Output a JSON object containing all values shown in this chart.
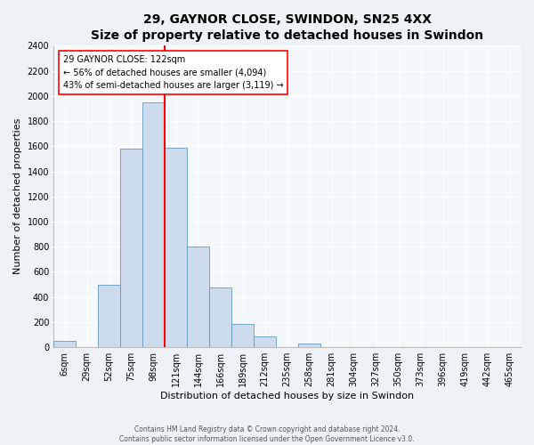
{
  "title": "29, GAYNOR CLOSE, SWINDON, SN25 4XX",
  "subtitle": "Size of property relative to detached houses in Swindon",
  "xlabel": "Distribution of detached houses by size in Swindon",
  "ylabel": "Number of detached properties",
  "bar_labels": [
    "6sqm",
    "29sqm",
    "52sqm",
    "75sqm",
    "98sqm",
    "121sqm",
    "144sqm",
    "166sqm",
    "189sqm",
    "212sqm",
    "235sqm",
    "258sqm",
    "281sqm",
    "304sqm",
    "327sqm",
    "350sqm",
    "373sqm",
    "396sqm",
    "419sqm",
    "442sqm",
    "465sqm"
  ],
  "bar_values": [
    50,
    0,
    500,
    1580,
    1950,
    1590,
    800,
    475,
    185,
    90,
    0,
    30,
    0,
    0,
    0,
    0,
    0,
    0,
    0,
    0,
    0
  ],
  "bar_color": "#ccdcee",
  "bar_edge_color": "#6699bb",
  "vline_color": "red",
  "vline_pos": 4.5,
  "annotation_text": "29 GAYNOR CLOSE: 122sqm\n← 56% of detached houses are smaller (4,094)\n43% of semi-detached houses are larger (3,119) →",
  "annotation_box_color": "white",
  "annotation_box_edge": "red",
  "ylim": [
    0,
    2400
  ],
  "yticks": [
    0,
    200,
    400,
    600,
    800,
    1000,
    1200,
    1400,
    1600,
    1800,
    2000,
    2200,
    2400
  ],
  "footer_line1": "Contains HM Land Registry data © Crown copyright and database right 2024.",
  "footer_line2": "Contains public sector information licensed under the Open Government Licence v3.0.",
  "bg_color": "#eef2f6",
  "plot_bg_color": "#f5f8fb",
  "title_fontsize": 10,
  "subtitle_fontsize": 9,
  "xlabel_fontsize": 8,
  "ylabel_fontsize": 8,
  "tick_fontsize": 7,
  "annotation_fontsize": 7,
  "footer_fontsize": 5.5
}
